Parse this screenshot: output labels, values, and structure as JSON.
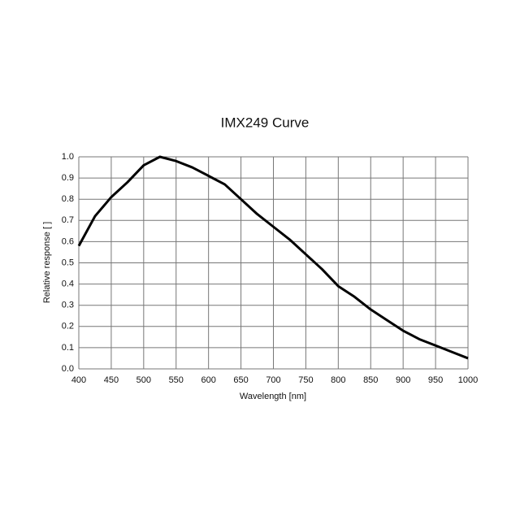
{
  "chart_data": {
    "type": "line",
    "title": "IMX249 Curve",
    "x_label": "Wavelength [nm]",
    "y_label": "Relative response [ ]",
    "x": [
      400,
      425,
      450,
      475,
      500,
      525,
      550,
      575,
      600,
      625,
      650,
      675,
      700,
      725,
      750,
      775,
      800,
      825,
      850,
      875,
      900,
      925,
      950,
      975,
      1000
    ],
    "series": [
      {
        "name": "IMX249",
        "color": "#000000",
        "values": [
          0.58,
          0.72,
          0.81,
          0.88,
          0.96,
          1.0,
          0.98,
          0.95,
          0.91,
          0.87,
          0.8,
          0.73,
          0.67,
          0.61,
          0.54,
          0.47,
          0.39,
          0.34,
          0.28,
          0.23,
          0.18,
          0.14,
          0.11,
          0.08,
          0.05
        ]
      }
    ],
    "xlim": [
      400,
      1000
    ],
    "xticks": [
      400,
      450,
      500,
      550,
      600,
      650,
      700,
      750,
      800,
      850,
      900,
      950,
      1000
    ],
    "ylim": [
      0,
      1
    ],
    "yticks": [
      {
        "value": 0,
        "label": "0.0"
      },
      0.1,
      0.2,
      0.3,
      0.4,
      0.5,
      0.6,
      0.7,
      0.8,
      0.9,
      {
        "value": 1,
        "label": "1.0"
      }
    ],
    "grid": true,
    "legend": false
  }
}
